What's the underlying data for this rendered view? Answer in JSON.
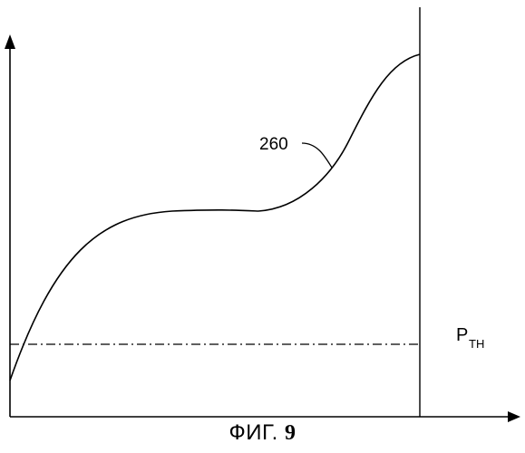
{
  "figure": {
    "curve_label": "260",
    "threshold_label": {
      "main": "P",
      "sub": "TH"
    },
    "caption": {
      "prefix": "ФИГ.",
      "number": "9"
    }
  },
  "colors": {
    "ink": "#000000",
    "background": "#ffffff"
  }
}
